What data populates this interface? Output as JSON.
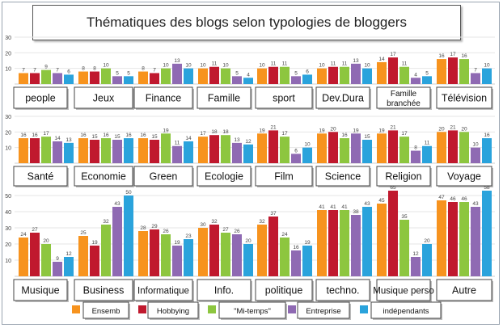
{
  "title": "Thématiques des blogs selon typologies de bloggers",
  "chart_data": {
    "type": "bar",
    "title": "Thématiques des blogs selon typologies de bloggers",
    "series_names": [
      "Ensemb",
      "Hobbying",
      "\"Mi-temps\"",
      "Entreprise",
      "indépendants"
    ],
    "colors": [
      "#f7931e",
      "#c0192e",
      "#8dc63f",
      "#8f6ab3",
      "#2aa3dc"
    ],
    "legend_position": "bottom",
    "panels": [
      {
        "ylim": [
          0,
          30
        ],
        "yticks": [
          "30",
          "20",
          "10"
        ],
        "categories": [
          {
            "label": "people",
            "values": [
              7,
              7,
              9,
              7,
              6
            ]
          },
          {
            "label": "Jeux",
            "values": [
              8,
              8,
              10,
              5,
              5
            ]
          },
          {
            "label": "Finance",
            "values": [
              8,
              7,
              10,
              13,
              10
            ]
          },
          {
            "label": "Famille",
            "values": [
              10,
              11,
              10,
              5,
              4
            ]
          },
          {
            "label": "sport",
            "values": [
              10,
              11,
              11,
              5,
              6
            ]
          },
          {
            "label": "Dev.Dura",
            "values": [
              10,
              11,
              11,
              13,
              10
            ]
          },
          {
            "label": "Famille branchée",
            "values": [
              14,
              17,
              11,
              4,
              5
            ]
          },
          {
            "label": "Télévision",
            "values": [
              16,
              17,
              16,
              7,
              10
            ]
          }
        ]
      },
      {
        "ylim": [
          0,
          30
        ],
        "yticks": [
          "30",
          "20",
          "10"
        ],
        "categories": [
          {
            "label": "Santé",
            "values": [
              16,
              16,
              17,
              14,
              13
            ]
          },
          {
            "label": "Economie",
            "values": [
              16,
              15,
              16,
              15,
              16
            ]
          },
          {
            "label": "Green",
            "values": [
              16,
              15,
              19,
              11,
              14
            ]
          },
          {
            "label": "Ecologie",
            "values": [
              17,
              18,
              18,
              13,
              12
            ]
          },
          {
            "label": "Film",
            "values": [
              19,
              21,
              17,
              6,
              10
            ]
          },
          {
            "label": "Science",
            "values": [
              19,
              20,
              16,
              19,
              15
            ]
          },
          {
            "label": "Religion",
            "values": [
              19,
              21,
              17,
              8,
              11
            ]
          },
          {
            "label": "Voyage",
            "values": [
              20,
              21,
              20,
              10,
              16
            ]
          }
        ]
      },
      {
        "ylim": [
          0,
          50
        ],
        "yticks": [
          "50",
          "40",
          "30",
          "20",
          "10"
        ],
        "categories": [
          {
            "label": "Musique",
            "values": [
              24,
              27,
              20,
              9,
              12
            ]
          },
          {
            "label": "Business",
            "values": [
              25,
              19,
              32,
              43,
              50
            ]
          },
          {
            "label": "Informatique",
            "values": [
              28,
              29,
              26,
              19,
              23
            ]
          },
          {
            "label": "Info.",
            "values": [
              30,
              32,
              27,
              26,
              20
            ]
          },
          {
            "label": "politique",
            "values": [
              32,
              37,
              24,
              16,
              19
            ]
          },
          {
            "label": "techno.",
            "values": [
              41,
              41,
              41,
              38,
              43
            ]
          },
          {
            "label": "Musique perso",
            "values": [
              45,
              65,
              35,
              12,
              20
            ]
          },
          {
            "label": "Autre",
            "values": [
              47,
              46,
              46,
              43,
              58
            ]
          }
        ]
      }
    ]
  }
}
